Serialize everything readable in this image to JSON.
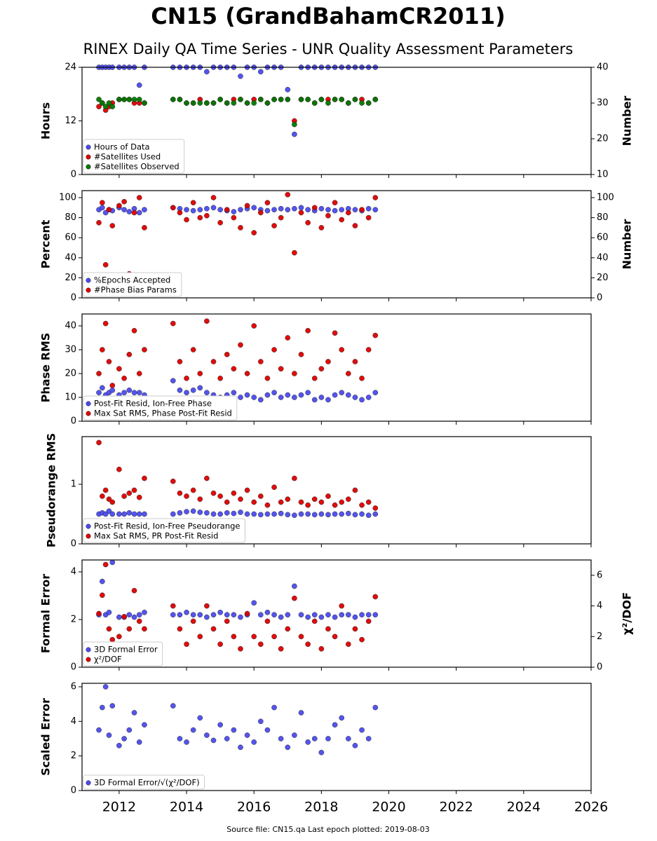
{
  "title": "CN15 (GrandBahamCR2011)",
  "subtitle": "RINEX Daily QA Time Series - UNR Quality Assessment Parameters",
  "footer": "Source file: CN15.qa Last epoch plotted: 2019-08-03",
  "chart_data": [
    {
      "type": "scatter",
      "ylabel": "Hours",
      "y2label": "Number",
      "legend": "lower left",
      "xlim": [
        2010.9,
        2026
      ],
      "ylim": [
        0,
        24
      ],
      "yticks": [
        0,
        12,
        24
      ],
      "y2lim": [
        10,
        40
      ],
      "y2ticks": [
        10,
        20,
        30,
        40
      ],
      "x": [
        2011.4,
        2011.5,
        2011.6,
        2011.7,
        2011.8,
        2012.0,
        2012.15,
        2012.3,
        2012.45,
        2012.6,
        2012.75,
        2013.6,
        2013.8,
        2014.0,
        2014.2,
        2014.4,
        2014.6,
        2014.8,
        2015.0,
        2015.2,
        2015.4,
        2015.6,
        2015.8,
        2016.0,
        2016.2,
        2016.4,
        2016.6,
        2016.8,
        2017.0,
        2017.2,
        2017.4,
        2017.6,
        2017.8,
        2018.0,
        2018.2,
        2018.4,
        2018.6,
        2018.8,
        2019.0,
        2019.2,
        2019.4,
        2019.6
      ],
      "series": [
        {
          "name": "Hours of Data",
          "color": "#4b4bf0",
          "values": [
            24,
            24,
            24,
            24,
            24,
            24,
            24,
            24,
            24,
            20,
            24,
            24,
            24,
            24,
            24,
            24,
            23,
            24,
            24,
            24,
            24,
            22,
            24,
            24,
            23,
            24,
            24,
            24,
            19,
            9,
            24,
            24,
            24,
            24,
            24,
            24,
            24,
            24,
            24,
            24,
            24,
            24
          ]
        },
        {
          "name": "#Satellites Used",
          "color": "#e00000",
          "axis": "y2",
          "values": [
            29,
            30,
            28,
            29,
            30,
            31,
            31,
            31,
            30,
            30,
            30,
            31,
            31,
            30,
            30,
            31,
            30,
            30,
            31,
            30,
            31,
            31,
            30,
            31,
            31,
            30,
            31,
            31,
            31,
            25,
            31,
            31,
            30,
            31,
            31,
            31,
            31,
            30,
            31,
            31,
            30,
            31
          ]
        },
        {
          "name": "#Satellites Observed",
          "color": "#007a00",
          "axis": "y2",
          "values": [
            31,
            30,
            29,
            30,
            29,
            31,
            31,
            31,
            31,
            31,
            30,
            31,
            31,
            30,
            30,
            30,
            30,
            30,
            31,
            30,
            30,
            31,
            30,
            30,
            31,
            30,
            31,
            31,
            31,
            24,
            31,
            31,
            30,
            31,
            30,
            31,
            31,
            30,
            31,
            30,
            30,
            31
          ]
        }
      ]
    },
    {
      "type": "scatter",
      "ylabel": "Percent",
      "y2label": "Number",
      "legend": "lower left",
      "xlim": [
        2010.9,
        2026
      ],
      "ylim": [
        0,
        107
      ],
      "yticks": [
        0,
        20,
        40,
        60,
        80,
        100
      ],
      "y2lim": [
        0,
        107
      ],
      "y2ticks": [
        0,
        20,
        40,
        60,
        80,
        100
      ],
      "x": [
        2011.4,
        2011.5,
        2011.6,
        2011.7,
        2011.8,
        2012.0,
        2012.15,
        2012.3,
        2012.45,
        2012.6,
        2012.75,
        2013.6,
        2013.8,
        2014.0,
        2014.2,
        2014.4,
        2014.6,
        2014.8,
        2015.0,
        2015.2,
        2015.4,
        2015.6,
        2015.8,
        2016.0,
        2016.2,
        2016.4,
        2016.6,
        2016.8,
        2017.0,
        2017.2,
        2017.4,
        2017.6,
        2017.8,
        2018.0,
        2018.2,
        2018.4,
        2018.6,
        2018.8,
        2019.0,
        2019.2,
        2019.4,
        2019.6
      ],
      "series": [
        {
          "name": "%Epochs Accepted",
          "color": "#4b4bf0",
          "values": [
            88,
            90,
            85,
            88,
            87,
            90,
            88,
            86,
            89,
            85,
            88,
            90,
            89,
            88,
            87,
            88,
            89,
            90,
            88,
            87,
            86,
            88,
            89,
            90,
            88,
            87,
            88,
            89,
            88,
            89,
            90,
            88,
            87,
            89,
            88,
            87,
            88,
            89,
            88,
            87,
            89,
            88
          ]
        },
        {
          "name": "#Phase Bias Params",
          "color": "#e00000",
          "axis": "y2",
          "values": [
            75,
            95,
            33,
            88,
            72,
            92,
            96,
            24,
            85,
            100,
            70,
            90,
            85,
            78,
            95,
            80,
            82,
            100,
            75,
            88,
            80,
            70,
            92,
            65,
            85,
            95,
            72,
            80,
            103,
            45,
            85,
            75,
            90,
            70,
            82,
            95,
            78,
            85,
            72,
            88,
            80,
            100
          ]
        }
      ]
    },
    {
      "type": "scatter",
      "ylabel": "Phase RMS",
      "legend": "lower left",
      "xlim": [
        2010.9,
        2026
      ],
      "ylim": [
        0,
        45
      ],
      "yticks": [
        0,
        10,
        20,
        30,
        40
      ],
      "x": [
        2011.4,
        2011.5,
        2011.6,
        2011.7,
        2011.8,
        2012.0,
        2012.15,
        2012.3,
        2012.45,
        2012.6,
        2012.75,
        2013.6,
        2013.8,
        2014.0,
        2014.2,
        2014.4,
        2014.6,
        2014.8,
        2015.0,
        2015.2,
        2015.4,
        2015.6,
        2015.8,
        2016.0,
        2016.2,
        2016.4,
        2016.6,
        2016.8,
        2017.0,
        2017.2,
        2017.4,
        2017.6,
        2017.8,
        2018.0,
        2018.2,
        2018.4,
        2018.6,
        2018.8,
        2019.0,
        2019.2,
        2019.4,
        2019.6
      ],
      "series": [
        {
          "name": "Post-Fit Resid, Ion-Free Phase",
          "color": "#4b4bf0",
          "values": [
            12,
            14,
            11,
            12,
            13,
            11,
            12,
            13,
            12,
            12,
            11,
            17,
            13,
            12,
            13,
            14,
            12,
            11,
            10,
            11,
            12,
            10,
            11,
            10,
            9,
            11,
            12,
            10,
            11,
            10,
            11,
            12,
            9,
            10,
            9,
            11,
            12,
            11,
            10,
            9,
            10,
            12
          ]
        },
        {
          "name": "Max Sat RMS, Phase Post-Fit Resid",
          "color": "#e00000",
          "values": [
            20,
            30,
            41,
            25,
            15,
            22,
            18,
            28,
            38,
            20,
            30,
            41,
            25,
            18,
            30,
            20,
            42,
            25,
            18,
            28,
            22,
            32,
            20,
            40,
            25,
            18,
            30,
            22,
            35,
            20,
            28,
            38,
            18,
            22,
            25,
            37,
            30,
            20,
            25,
            18,
            30,
            36
          ]
        }
      ]
    },
    {
      "type": "scatter",
      "ylabel": "Pseudorange RMS",
      "legend": "lower left",
      "xlim": [
        2010.9,
        2026
      ],
      "ylim": [
        0,
        1.8
      ],
      "yticks": [
        0,
        1
      ],
      "x": [
        2011.4,
        2011.5,
        2011.6,
        2011.7,
        2011.8,
        2012.0,
        2012.15,
        2012.3,
        2012.45,
        2012.6,
        2012.75,
        2013.6,
        2013.8,
        2014.0,
        2014.2,
        2014.4,
        2014.6,
        2014.8,
        2015.0,
        2015.2,
        2015.4,
        2015.6,
        2015.8,
        2016.0,
        2016.2,
        2016.4,
        2016.6,
        2016.8,
        2017.0,
        2017.2,
        2017.4,
        2017.6,
        2017.8,
        2018.0,
        2018.2,
        2018.4,
        2018.6,
        2018.8,
        2019.0,
        2019.2,
        2019.4,
        2019.6
      ],
      "series": [
        {
          "name": "Post-Fit Resid, Ion-Free Pseudorange",
          "color": "#4b4bf0",
          "values": [
            0.5,
            0.52,
            0.5,
            0.55,
            0.5,
            0.5,
            0.5,
            0.52,
            0.5,
            0.5,
            0.5,
            0.5,
            0.52,
            0.54,
            0.55,
            0.53,
            0.52,
            0.5,
            0.5,
            0.52,
            0.51,
            0.53,
            0.5,
            0.5,
            0.49,
            0.5,
            0.5,
            0.51,
            0.49,
            0.48,
            0.5,
            0.5,
            0.49,
            0.5,
            0.49,
            0.5,
            0.5,
            0.51,
            0.49,
            0.5,
            0.48,
            0.5
          ]
        },
        {
          "name": "Max Sat RMS, PR Post-Fit Resid",
          "color": "#e00000",
          "values": [
            1.7,
            0.8,
            0.9,
            0.75,
            0.7,
            1.25,
            0.8,
            0.85,
            0.9,
            0.78,
            1.1,
            1.05,
            0.85,
            0.8,
            0.9,
            0.75,
            1.1,
            0.85,
            0.8,
            0.7,
            0.85,
            0.75,
            0.9,
            0.7,
            0.8,
            0.65,
            0.95,
            0.7,
            0.75,
            1.1,
            0.7,
            0.65,
            0.75,
            0.7,
            0.8,
            0.65,
            0.7,
            0.75,
            0.9,
            0.65,
            0.7,
            0.6
          ]
        }
      ]
    },
    {
      "type": "scatter",
      "ylabel": "Formal Error",
      "y2label": "χ²/DOF",
      "legend": "lower left",
      "xlim": [
        2010.9,
        2026
      ],
      "ylim": [
        0,
        4.5
      ],
      "yticks": [
        0,
        2,
        4
      ],
      "y2lim": [
        0,
        7
      ],
      "y2ticks": [
        0,
        2,
        4,
        6
      ],
      "x": [
        2011.4,
        2011.5,
        2011.6,
        2011.7,
        2011.8,
        2012.0,
        2012.15,
        2012.3,
        2012.45,
        2012.6,
        2012.75,
        2013.6,
        2013.8,
        2014.0,
        2014.2,
        2014.4,
        2014.6,
        2014.8,
        2015.0,
        2015.2,
        2015.4,
        2015.6,
        2015.8,
        2016.0,
        2016.2,
        2016.4,
        2016.6,
        2016.8,
        2017.0,
        2017.2,
        2017.4,
        2017.6,
        2017.8,
        2018.0,
        2018.2,
        2018.4,
        2018.6,
        2018.8,
        2019.0,
        2019.2,
        2019.4,
        2019.6
      ],
      "series": [
        {
          "name": "3D Formal Error",
          "color": "#4b4bf0",
          "values": [
            2.2,
            3.6,
            2.2,
            2.3,
            4.4,
            2.1,
            2.1,
            2.2,
            2.1,
            2.2,
            2.3,
            2.2,
            2.2,
            2.3,
            2.2,
            2.2,
            2.1,
            2.2,
            2.3,
            2.2,
            2.2,
            2.1,
            2.2,
            2.7,
            2.2,
            2.3,
            2.2,
            2.1,
            2.2,
            3.4,
            2.2,
            2.1,
            2.2,
            2.1,
            2.2,
            2.1,
            2.2,
            2.2,
            2.1,
            2.2,
            2.2,
            2.2
          ]
        },
        {
          "name": "χ²/DOF",
          "color": "#e00000",
          "axis": "y2",
          "values": [
            3.5,
            4.7,
            6.7,
            2.5,
            1.8,
            2.0,
            3.3,
            2.5,
            5.0,
            3.0,
            2.5,
            4.0,
            2.5,
            1.5,
            3.0,
            2.0,
            4.0,
            2.5,
            1.5,
            3.0,
            2.0,
            1.2,
            3.5,
            2.0,
            1.5,
            3.0,
            2.0,
            1.2,
            2.5,
            4.5,
            2.0,
            1.5,
            3.0,
            1.2,
            2.5,
            2.0,
            4.0,
            1.5,
            2.5,
            1.8,
            3.0,
            4.6
          ]
        }
      ]
    },
    {
      "type": "scatter",
      "ylabel": "Scaled Error",
      "legend": "lower left",
      "xlim": [
        2010.9,
        2026
      ],
      "ylim": [
        0,
        6.2
      ],
      "yticks": [
        0,
        2,
        4,
        6
      ],
      "xticks": [
        2012,
        2014,
        2016,
        2018,
        2020,
        2022,
        2024,
        2026
      ],
      "x": [
        2011.4,
        2011.5,
        2011.6,
        2011.7,
        2011.8,
        2012.0,
        2012.15,
        2012.3,
        2012.45,
        2012.6,
        2012.75,
        2013.6,
        2013.8,
        2014.0,
        2014.2,
        2014.4,
        2014.6,
        2014.8,
        2015.0,
        2015.2,
        2015.4,
        2015.6,
        2015.8,
        2016.0,
        2016.2,
        2016.4,
        2016.6,
        2016.8,
        2017.0,
        2017.2,
        2017.4,
        2017.6,
        2017.8,
        2018.0,
        2018.2,
        2018.4,
        2018.6,
        2018.8,
        2019.0,
        2019.2,
        2019.4,
        2019.6
      ],
      "series": [
        {
          "name": "3D Formal Error/√(χ²/DOF)",
          "color": "#4b4bf0",
          "values": [
            3.5,
            4.8,
            6.0,
            3.2,
            4.9,
            2.6,
            3.0,
            3.5,
            4.5,
            2.8,
            3.8,
            4.9,
            3.0,
            2.8,
            3.5,
            4.2,
            3.2,
            2.9,
            3.8,
            3.0,
            3.5,
            2.5,
            3.2,
            2.8,
            4.0,
            3.5,
            4.8,
            3.0,
            2.5,
            3.2,
            4.5,
            2.8,
            3.0,
            2.2,
            3.0,
            3.8,
            4.2,
            3.0,
            2.6,
            3.5,
            3.0,
            4.8
          ]
        }
      ]
    }
  ]
}
